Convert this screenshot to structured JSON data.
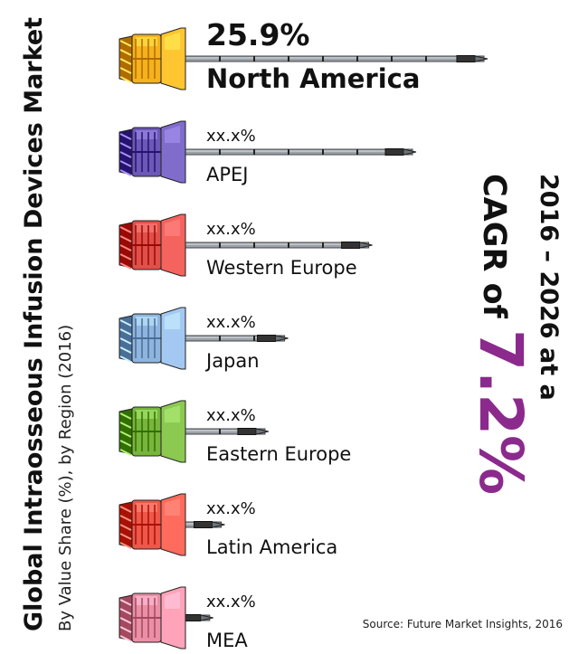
{
  "title": "Global Intraosseous Infusion Devices Market",
  "subtitle": "By Value Share (%), by Region (2016)",
  "cagr": {
    "line1": "2016 – 2026 at a",
    "prefix": "CAGR of ",
    "value": "7.2%"
  },
  "source": "Source: Future Market Insights, 2016",
  "colors": {
    "north_america": "#f6b21d",
    "apej": "#6b58b7",
    "western_europe": "#e14f4a",
    "japan": "#8fb5df",
    "eastern_europe": "#77b53d",
    "latin_america": "#ee5749",
    "mea": "#ea8fa5",
    "cagr_accent": "#8b2a8c"
  },
  "chart_data": {
    "type": "bar",
    "categories": [
      "North America",
      "APEJ",
      "Western Europe",
      "Japan",
      "Eastern Europe",
      "Latin America",
      "MEA"
    ],
    "value_labels": [
      "25.9%",
      "xx.x%",
      "xx.x%",
      "xx.x%",
      "xx.x%",
      "xx.x%",
      "xx.x%"
    ],
    "values": [
      25.9,
      19.7,
      15.9,
      8.6,
      6.9,
      3.1,
      2.1
    ],
    "orientation": "horizontal",
    "title": "Global Intraosseous Infusion Devices Market",
    "subtitle": "By Value Share (%), by Region (2016)"
  }
}
